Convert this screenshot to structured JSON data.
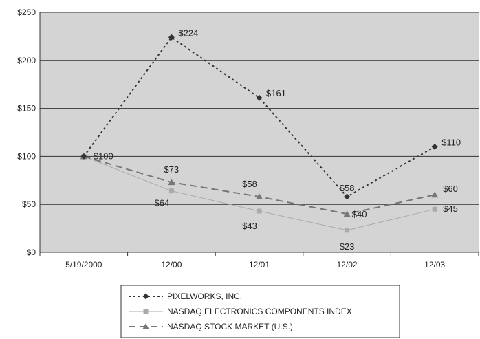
{
  "chart_data": {
    "type": "line",
    "title": "",
    "xlabel": "",
    "ylabel": "",
    "categories": [
      "5/19/2000",
      "12/00",
      "12/01",
      "12/02",
      "12/03"
    ],
    "ylim": [
      0,
      250
    ],
    "yticks": [
      {
        "value": 0,
        "label": "$0"
      },
      {
        "value": 50,
        "label": "$50"
      },
      {
        "value": 100,
        "label": "$100"
      },
      {
        "value": 150,
        "label": "$150"
      },
      {
        "value": 200,
        "label": "$200"
      },
      {
        "value": 250,
        "label": "$250"
      }
    ],
    "grid": true,
    "legend_position": "bottom",
    "series": [
      {
        "name": "PIXELWORKS, INC.",
        "values": [
          100,
          224,
          161,
          58,
          110
        ],
        "labels": [
          "$100",
          "$224",
          "$161",
          "$58",
          "$110"
        ],
        "color": "#333333",
        "line_style": "dotted",
        "marker": "diamond"
      },
      {
        "name": "NASDAQ ELECTRONICS COMPONENTS INDEX",
        "values": [
          100,
          64,
          43,
          23,
          45
        ],
        "labels": [
          "",
          "$64",
          "$43",
          "$23",
          "$45"
        ],
        "color": "#aaaaaa",
        "line_style": "solid",
        "marker": "square"
      },
      {
        "name": "NASDAQ STOCK MARKET (U.S.)",
        "values": [
          100,
          73,
          58,
          40,
          60
        ],
        "labels": [
          "",
          "$73",
          "$58",
          "$40",
          "$60"
        ],
        "color": "#777777",
        "line_style": "dashed",
        "marker": "triangle"
      }
    ]
  }
}
